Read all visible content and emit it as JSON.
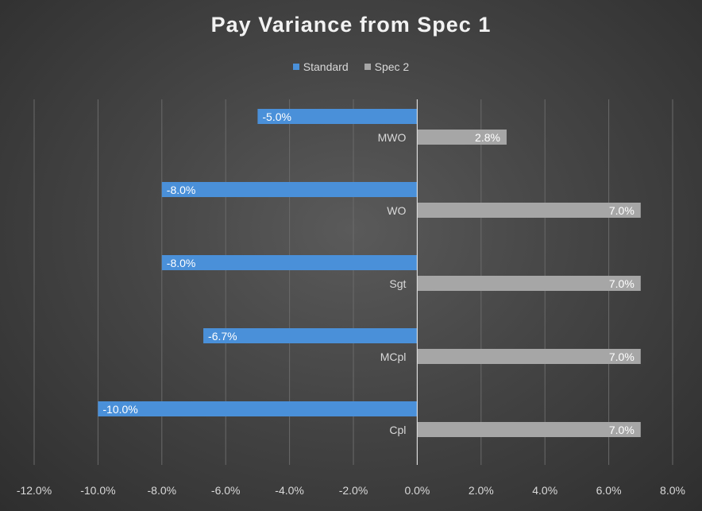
{
  "chart_data": {
    "type": "bar",
    "orientation": "horizontal",
    "title": "Pay Variance from Spec 1",
    "categories": [
      "MWO",
      "WO",
      "Sgt",
      "MCpl",
      "Cpl"
    ],
    "series": [
      {
        "name": "Standard",
        "values": [
          -5.0,
          -8.0,
          -8.0,
          -6.7,
          -10.0
        ],
        "labels": [
          "-5.0%",
          "-8.0%",
          "-8.0%",
          "-6.7%",
          "-10.0%"
        ]
      },
      {
        "name": "Spec 2",
        "values": [
          2.8,
          7.0,
          7.0,
          7.0,
          7.0
        ],
        "labels": [
          "2.8%",
          "7.0%",
          "7.0%",
          "7.0%",
          "7.0%"
        ]
      }
    ],
    "xlim": [
      -12,
      8
    ],
    "xticks": [
      -12,
      -10,
      -8,
      -6,
      -4,
      -2,
      0,
      2,
      4,
      6,
      8
    ],
    "xtick_labels": [
      "-12.0%",
      "-10.0%",
      "-8.0%",
      "-6.0%",
      "-4.0%",
      "-2.0%",
      "0.0%",
      "2.0%",
      "4.0%",
      "6.0%",
      "8.0%"
    ],
    "grid": "vertical",
    "legend_position": "top-center",
    "colors": {
      "Standard": "#4a90d9",
      "Spec 2": "#a6a6a6"
    }
  }
}
